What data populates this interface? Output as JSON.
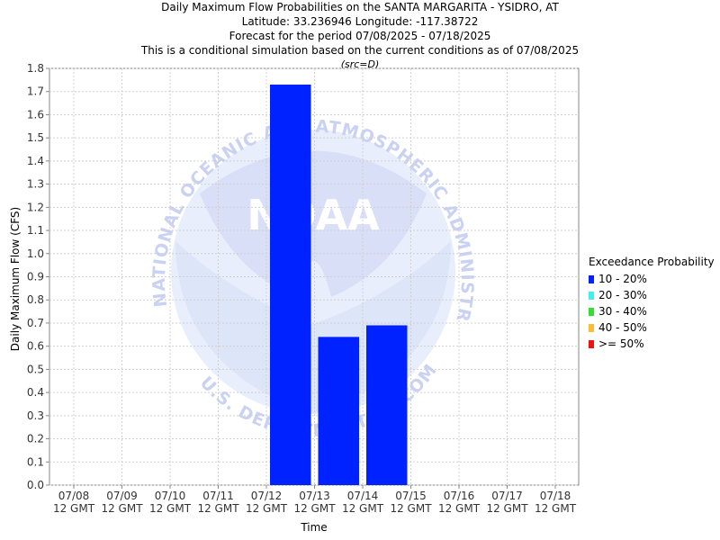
{
  "title_lines": [
    "Daily Maximum Flow Probabilities on the SANTA MARGARITA - YSIDRO, AT",
    "Latitude: 33.236946 Longitude: -117.38722",
    "Forecast for the period 07/08/2025 - 07/18/2025",
    "This is a conditional simulation based on the current conditions as of 07/08/2025"
  ],
  "source_note": "(src=D)",
  "watermark": {
    "logo_text": "NOAA",
    "ring_top": "NATIONAL OCEANIC AND ATMOSPHERIC ADMINISTRATION",
    "ring_bottom": "U.S. DEPARTMENT OF COMMERCE"
  },
  "colors": {
    "bar": "#0022ff",
    "grid": "#d0d0d0",
    "watermark_light": "#e6ecfb",
    "watermark_mid": "#d6dcf6"
  },
  "legend": {
    "title": "Exceedance Probability",
    "items": [
      {
        "label": "10 - 20%",
        "color": "#0022ff"
      },
      {
        "label": "20 - 30%",
        "color": "#44eeee"
      },
      {
        "label": "30 - 40%",
        "color": "#33dd33"
      },
      {
        "label": "40 - 50%",
        "color": "#ffbb33"
      },
      {
        "label": ">= 50%",
        "color": "#ee1111"
      }
    ]
  },
  "chart_data": {
    "type": "bar",
    "xlabel": "Time",
    "ylabel": "Daily Maximum Flow (CFS)",
    "ylim": [
      0,
      1.8
    ],
    "yticks": [
      "0.0",
      "0.1",
      "0.2",
      "0.3",
      "0.4",
      "0.5",
      "0.6",
      "0.7",
      "0.8",
      "0.9",
      "1.0",
      "1.1",
      "1.2",
      "1.3",
      "1.4",
      "1.5",
      "1.6",
      "1.7",
      "1.8"
    ],
    "x_ticks": [
      {
        "date": "07/08",
        "time": "12 GMT"
      },
      {
        "date": "07/09",
        "time": "12 GMT"
      },
      {
        "date": "07/10",
        "time": "12 GMT"
      },
      {
        "date": "07/11",
        "time": "12 GMT"
      },
      {
        "date": "07/12",
        "time": "12 GMT"
      },
      {
        "date": "07/13",
        "time": "12 GMT"
      },
      {
        "date": "07/14",
        "time": "12 GMT"
      },
      {
        "date": "07/15",
        "time": "12 GMT"
      },
      {
        "date": "07/16",
        "time": "12 GMT"
      },
      {
        "date": "07/17",
        "time": "12 GMT"
      },
      {
        "date": "07/18",
        "time": "12 GMT"
      }
    ],
    "grid": true,
    "legend_position": "right",
    "series": [
      {
        "name": "10 - 20%",
        "bars": [
          {
            "start": "07/12",
            "end": "07/13",
            "value": 1.73
          },
          {
            "start": "07/13",
            "end": "07/14",
            "value": 0.64
          },
          {
            "start": "07/14",
            "end": "07/15",
            "value": 0.69
          }
        ]
      }
    ]
  }
}
